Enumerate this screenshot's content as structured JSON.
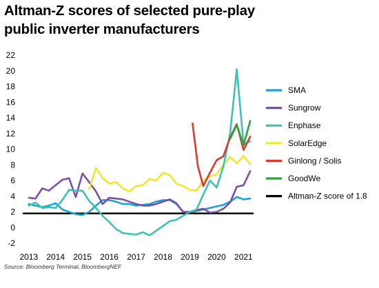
{
  "title_line1": "Altman-Z scores of selected pure-play",
  "title_line2": "public inverter manufacturers",
  "source": "Source: Bloomberg Terminal, BloombergNEF",
  "chart_data": {
    "type": "line",
    "title": "Altman-Z scores of selected pure-play public inverter manufacturers",
    "xlabel": "",
    "ylabel": "",
    "xlim": [
      2012.8,
      2021.35
    ],
    "ylim": [
      -2,
      22
    ],
    "x_ticks": [
      2013,
      2014,
      2015,
      2016,
      2017,
      2018,
      2019,
      2020,
      2021
    ],
    "y_ticks": [
      -2,
      0,
      2,
      4,
      6,
      8,
      10,
      12,
      14,
      16,
      18,
      20,
      22
    ],
    "grid": false,
    "legend_position": "right",
    "series": [
      {
        "name": "SMA",
        "color": "#1aa3d9",
        "x": [
          2013.0,
          2013.25,
          2013.5,
          2013.75,
          2014.0,
          2014.25,
          2014.5,
          2014.75,
          2015.0,
          2015.25,
          2015.5,
          2015.75,
          2016.0,
          2016.25,
          2016.5,
          2016.75,
          2017.0,
          2017.25,
          2017.5,
          2017.75,
          2018.0,
          2018.25,
          2018.5,
          2018.75,
          2019.0,
          2019.25,
          2019.5,
          2019.75,
          2020.0,
          2020.25,
          2020.5,
          2020.75,
          2021.0,
          2021.25
        ],
        "values": [
          3.0,
          2.8,
          2.6,
          2.8,
          3.1,
          2.3,
          2.0,
          1.7,
          1.6,
          2.0,
          2.8,
          3.5,
          3.5,
          3.3,
          3.0,
          3.0,
          2.8,
          2.9,
          3.0,
          3.3,
          3.5,
          3.5,
          3.0,
          2.0,
          2.0,
          2.1,
          2.3,
          2.5,
          2.7,
          2.9,
          3.3,
          3.9,
          3.6,
          3.7
        ]
      },
      {
        "name": "Sungrow",
        "color": "#7a4fa3",
        "x": [
          2013.0,
          2013.25,
          2013.5,
          2013.75,
          2014.0,
          2014.25,
          2014.5,
          2014.75,
          2015.0,
          2015.25,
          2015.5,
          2015.75,
          2016.0,
          2016.25,
          2016.5,
          2016.75,
          2017.0,
          2017.25,
          2017.5,
          2017.75,
          2018.0,
          2018.25,
          2018.5,
          2018.75,
          2019.0,
          2019.25,
          2019.5,
          2019.75,
          2020.0,
          2020.25,
          2020.5,
          2020.75,
          2021.0,
          2021.25
        ],
        "values": [
          3.8,
          3.7,
          5.0,
          4.7,
          5.4,
          6.1,
          6.3,
          3.9,
          6.9,
          5.8,
          4.6,
          3.0,
          3.8,
          3.7,
          3.6,
          3.3,
          3.0,
          2.8,
          2.8,
          3.0,
          3.3,
          3.6,
          3.1,
          2.0,
          2.0,
          2.2,
          2.4,
          1.9,
          2.0,
          2.4,
          3.2,
          5.2,
          5.4,
          7.2
        ]
      },
      {
        "name": "Enphase",
        "color": "#3cc2b3",
        "x": [
          2013.0,
          2013.25,
          2013.5,
          2013.75,
          2014.0,
          2014.25,
          2014.5,
          2014.75,
          2015.0,
          2015.25,
          2015.5,
          2015.75,
          2016.0,
          2016.25,
          2016.5,
          2016.75,
          2017.0,
          2017.25,
          2017.5,
          2017.75,
          2018.0,
          2018.25,
          2018.5,
          2018.75,
          2019.0,
          2019.25,
          2019.5,
          2019.75,
          2020.0,
          2020.25,
          2020.5,
          2020.75,
          2021.0,
          2021.25
        ],
        "values": [
          2.8,
          3.2,
          2.5,
          2.6,
          2.5,
          3.5,
          4.8,
          4.7,
          4.7,
          3.4,
          2.5,
          1.5,
          0.7,
          -0.2,
          -0.7,
          -0.8,
          -0.9,
          -0.6,
          -1.0,
          -0.4,
          0.2,
          0.8,
          1.0,
          1.5,
          2.0,
          2.3,
          4.2,
          6.0,
          5.1,
          7.8,
          12.0,
          20.2,
          10.6,
          11.0
        ]
      },
      {
        "name": "SolarEdge",
        "color": "#f2e530",
        "x": [
          2015.25,
          2015.5,
          2015.75,
          2016.0,
          2016.25,
          2016.5,
          2016.75,
          2017.0,
          2017.25,
          2017.5,
          2017.75,
          2018.0,
          2018.25,
          2018.5,
          2018.75,
          2019.0,
          2019.25,
          2019.5,
          2019.75,
          2020.0,
          2020.25,
          2020.5,
          2020.75,
          2021.0,
          2021.25
        ],
        "values": [
          4.9,
          7.6,
          6.3,
          5.6,
          5.8,
          5.0,
          4.6,
          5.3,
          5.4,
          6.2,
          6.0,
          7.0,
          6.7,
          5.6,
          5.3,
          4.8,
          4.7,
          6.0,
          6.5,
          6.8,
          8.0,
          9.0,
          8.2,
          9.1,
          8.1
        ]
      },
      {
        "name": "Ginlong / Solis",
        "color": "#d93a2b",
        "x": [
          2019.1,
          2019.3,
          2019.5,
          2019.75,
          2020.0,
          2020.25,
          2020.5,
          2020.75,
          2021.0,
          2021.25
        ],
        "values": [
          13.3,
          7.8,
          5.3,
          7.0,
          8.6,
          9.1,
          11.5,
          13.2,
          9.9,
          11.6
        ]
      },
      {
        "name": "GoodWe",
        "color": "#2aa33a",
        "x": [
          2020.5,
          2020.75,
          2021.0,
          2021.25
        ],
        "values": [
          11.3,
          13.1,
          10.5,
          13.6
        ]
      },
      {
        "name": "Altman-Z score of 1.8",
        "color": "#000000",
        "x": [
          2012.8,
          2021.35
        ],
        "values": [
          1.8,
          1.8
        ]
      }
    ]
  }
}
